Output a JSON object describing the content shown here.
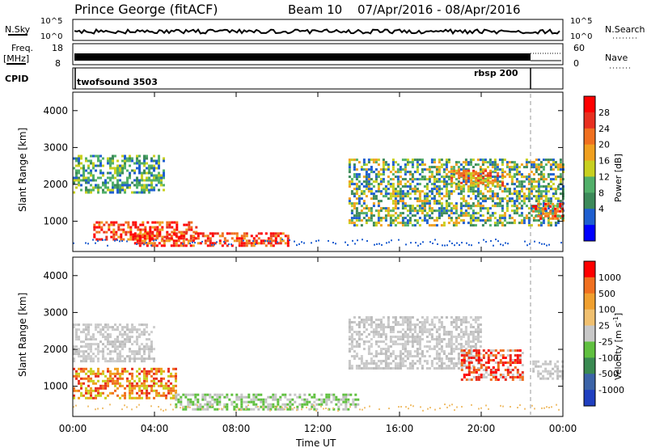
{
  "header": {
    "station": "Prince George (fitACF)",
    "beam": "Beam 10",
    "dates": "07/Apr/2016 - 08/Apr/2016"
  },
  "left_labels": {
    "nsky": "N.Sky",
    "freq": "Freq.",
    "freq_unit": "[MHz]",
    "cpid": "CPID"
  },
  "right_labels": {
    "nsearch": "N.Search",
    "nave": "Nave"
  },
  "nsky_ticks": {
    "top": "10^5",
    "bottom": "10^0"
  },
  "freq_ticks": {
    "left_top": "18",
    "left_bottom": "8",
    "right_top": "60",
    "right_bottom": "0"
  },
  "cpid": {
    "first": "twofsound 3503",
    "second": "rbsp 200"
  },
  "chart_data": [
    {
      "type": "heatmap",
      "name": "power",
      "ylabel": "Slant Range [km]",
      "ylim": [
        180,
        4500
      ],
      "yticks": [
        "1000",
        "2000",
        "3000",
        "4000"
      ],
      "colorbar_label": "Power [dB]",
      "colorbar_ticks": [
        "28",
        "24",
        "20",
        "16",
        "12",
        "8",
        "4"
      ],
      "colorbar_colors": [
        "#0000ff",
        "#1f5fd0",
        "#3d8a5a",
        "#52b06a",
        "#c8d020",
        "#f0a020",
        "#f07020",
        "#e83020",
        "#ff0000"
      ],
      "xlim_hours": [
        0,
        24
      ],
      "xticks": [
        "00:00",
        "04:00",
        "08:00",
        "12:00",
        "16:00",
        "20:00",
        "00:00"
      ],
      "echo_bands": [
        {
          "hours": [
            0.0,
            4.5
          ],
          "range_km": [
            1800,
            2800
          ],
          "level": "mixed-green"
        },
        {
          "hours": [
            1.0,
            6.0
          ],
          "range_km": [
            500,
            1000
          ],
          "level": "high-red"
        },
        {
          "hours": [
            3.0,
            10.5
          ],
          "range_km": [
            350,
            700
          ],
          "level": "high-red"
        },
        {
          "hours": [
            13.5,
            24.0
          ],
          "range_km": [
            900,
            2700
          ],
          "level": "mixed-green-orange"
        },
        {
          "hours": [
            18.5,
            21.0
          ],
          "range_km": [
            2000,
            2400
          ],
          "level": "orange"
        },
        {
          "hours": [
            22.5,
            24.0
          ],
          "range_km": [
            1100,
            1500
          ],
          "level": "orange-red"
        }
      ]
    },
    {
      "type": "heatmap",
      "name": "velocity",
      "ylabel": "Slant Range [km]",
      "ylim": [
        180,
        4500
      ],
      "yticks": [
        "1000",
        "2000",
        "3000",
        "4000"
      ],
      "colorbar_label": "Velocity [m s^-1]",
      "colorbar_ticks": [
        "1000",
        "500",
        "100",
        "25",
        "-25",
        "-100",
        "-500",
        "-1000"
      ],
      "colorbar_colors": [
        "#2040c0",
        "#3c64a8",
        "#3a8a52",
        "#60c040",
        "#c8c8c8",
        "#f0c070",
        "#f0a030",
        "#f07020",
        "#ff0000"
      ],
      "xlim_hours": [
        0,
        24
      ],
      "xlabel": "Time UT",
      "xticks": [
        "00:00",
        "04:00",
        "08:00",
        "12:00",
        "16:00",
        "20:00",
        "00:00"
      ],
      "echo_bands": [
        {
          "hours": [
            0.0,
            4.0
          ],
          "range_km": [
            1700,
            2700
          ],
          "level": "grey"
        },
        {
          "hours": [
            0.0,
            5.0
          ],
          "range_km": [
            700,
            1500
          ],
          "level": "orange"
        },
        {
          "hours": [
            5.0,
            14.0
          ],
          "range_km": [
            400,
            800
          ],
          "level": "green-grey"
        },
        {
          "hours": [
            13.5,
            20.0
          ],
          "range_km": [
            1500,
            2900
          ],
          "level": "grey"
        },
        {
          "hours": [
            19.0,
            22.0
          ],
          "range_km": [
            1200,
            2000
          ],
          "level": "red-orange"
        },
        {
          "hours": [
            22.5,
            24.0
          ],
          "range_km": [
            1200,
            1700
          ],
          "level": "grey"
        }
      ]
    }
  ]
}
